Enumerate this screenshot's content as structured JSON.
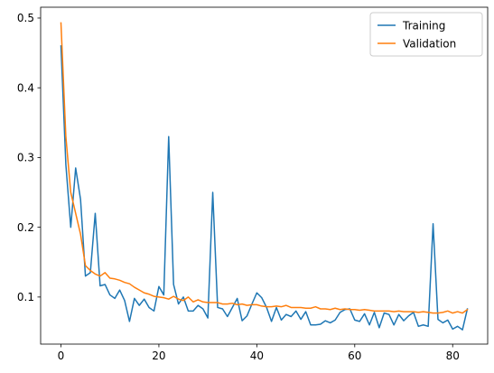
{
  "chart_data": {
    "type": "line",
    "title": "",
    "xlabel": "",
    "ylabel": "",
    "xlim": [
      -4.15,
      87.15
    ],
    "ylim": [
      0.0325,
      0.5155
    ],
    "xticks": [
      0,
      20,
      40,
      60,
      80
    ],
    "yticks": [
      0.1,
      0.2,
      0.3,
      0.4,
      0.5
    ],
    "grid": false,
    "legend_position": "top-right",
    "series": [
      {
        "name": "Training",
        "color": "#1f77b4",
        "x": [
          0,
          1,
          2,
          3,
          4,
          5,
          6,
          7,
          8,
          9,
          10,
          11,
          12,
          13,
          14,
          15,
          16,
          17,
          18,
          19,
          20,
          21,
          22,
          23,
          24,
          25,
          26,
          27,
          28,
          29,
          30,
          31,
          32,
          33,
          34,
          35,
          36,
          37,
          38,
          39,
          40,
          41,
          42,
          43,
          44,
          45,
          46,
          47,
          48,
          49,
          50,
          51,
          52,
          53,
          54,
          55,
          56,
          57,
          58,
          59,
          60,
          61,
          62,
          63,
          64,
          65,
          66,
          67,
          68,
          69,
          70,
          71,
          72,
          73,
          74,
          75,
          76,
          77,
          78,
          79,
          80,
          81,
          82,
          83
        ],
        "values": [
          0.46,
          0.29,
          0.2,
          0.285,
          0.24,
          0.13,
          0.135,
          0.22,
          0.116,
          0.118,
          0.103,
          0.098,
          0.11,
          0.095,
          0.065,
          0.098,
          0.088,
          0.097,
          0.085,
          0.08,
          0.115,
          0.103,
          0.33,
          0.118,
          0.09,
          0.1,
          0.08,
          0.08,
          0.088,
          0.083,
          0.07,
          0.25,
          0.085,
          0.083,
          0.072,
          0.085,
          0.098,
          0.066,
          0.073,
          0.09,
          0.106,
          0.099,
          0.085,
          0.065,
          0.085,
          0.067,
          0.075,
          0.072,
          0.08,
          0.068,
          0.079,
          0.06,
          0.06,
          0.061,
          0.066,
          0.063,
          0.067,
          0.078,
          0.082,
          0.083,
          0.067,
          0.065,
          0.076,
          0.06,
          0.078,
          0.056,
          0.077,
          0.075,
          0.06,
          0.075,
          0.066,
          0.073,
          0.078,
          0.058,
          0.06,
          0.058,
          0.205,
          0.068,
          0.063,
          0.067,
          0.054,
          0.058,
          0.053,
          0.083
        ]
      },
      {
        "name": "Validation",
        "color": "#ff7f0e",
        "x": [
          0,
          1,
          2,
          3,
          4,
          5,
          6,
          7,
          8,
          9,
          10,
          11,
          12,
          13,
          14,
          15,
          16,
          17,
          18,
          19,
          20,
          21,
          22,
          23,
          24,
          25,
          26,
          27,
          28,
          29,
          30,
          31,
          32,
          33,
          34,
          35,
          36,
          37,
          38,
          39,
          40,
          41,
          42,
          43,
          44,
          45,
          46,
          47,
          48,
          49,
          50,
          51,
          52,
          53,
          54,
          55,
          56,
          57,
          58,
          59,
          60,
          61,
          62,
          63,
          64,
          65,
          66,
          67,
          68,
          69,
          70,
          71,
          72,
          73,
          74,
          75,
          76,
          77,
          78,
          79,
          80,
          81,
          82,
          83
        ],
        "values": [
          0.493,
          0.33,
          0.25,
          0.22,
          0.19,
          0.145,
          0.138,
          0.133,
          0.13,
          0.135,
          0.127,
          0.126,
          0.124,
          0.121,
          0.119,
          0.114,
          0.11,
          0.106,
          0.104,
          0.101,
          0.1,
          0.099,
          0.097,
          0.101,
          0.097,
          0.095,
          0.1,
          0.093,
          0.096,
          0.093,
          0.092,
          0.092,
          0.092,
          0.09,
          0.09,
          0.091,
          0.089,
          0.09,
          0.088,
          0.089,
          0.089,
          0.087,
          0.086,
          0.086,
          0.087,
          0.086,
          0.088,
          0.085,
          0.085,
          0.085,
          0.084,
          0.084,
          0.086,
          0.083,
          0.083,
          0.082,
          0.084,
          0.082,
          0.083,
          0.082,
          0.082,
          0.081,
          0.082,
          0.081,
          0.08,
          0.08,
          0.08,
          0.08,
          0.079,
          0.08,
          0.079,
          0.079,
          0.079,
          0.078,
          0.079,
          0.078,
          0.077,
          0.077,
          0.078,
          0.08,
          0.077,
          0.079,
          0.077,
          0.082
        ]
      }
    ]
  }
}
